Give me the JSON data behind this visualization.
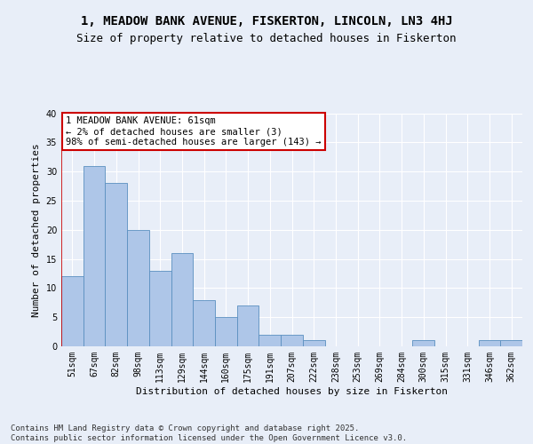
{
  "title1": "1, MEADOW BANK AVENUE, FISKERTON, LINCOLN, LN3 4HJ",
  "title2": "Size of property relative to detached houses in Fiskerton",
  "xlabel": "Distribution of detached houses by size in Fiskerton",
  "ylabel": "Number of detached properties",
  "categories": [
    "51sqm",
    "67sqm",
    "82sqm",
    "98sqm",
    "113sqm",
    "129sqm",
    "144sqm",
    "160sqm",
    "175sqm",
    "191sqm",
    "207sqm",
    "222sqm",
    "238sqm",
    "253sqm",
    "269sqm",
    "284sqm",
    "300sqm",
    "315sqm",
    "331sqm",
    "346sqm",
    "362sqm"
  ],
  "values": [
    12,
    31,
    28,
    20,
    13,
    16,
    8,
    5,
    7,
    2,
    2,
    1,
    0,
    0,
    0,
    0,
    1,
    0,
    0,
    1,
    1
  ],
  "bar_color": "#aec6e8",
  "bar_edge_color": "#5a8fc0",
  "highlight_line_color": "#cc0000",
  "annotation_text": "1 MEADOW BANK AVENUE: 61sqm\n← 2% of detached houses are smaller (3)\n98% of semi-detached houses are larger (143) →",
  "annotation_box_color": "#ffffff",
  "annotation_box_edge_color": "#cc0000",
  "ylim": [
    0,
    40
  ],
  "yticks": [
    0,
    5,
    10,
    15,
    20,
    25,
    30,
    35,
    40
  ],
  "footer_text": "Contains HM Land Registry data © Crown copyright and database right 2025.\nContains public sector information licensed under the Open Government Licence v3.0.",
  "bg_color": "#e8eef8",
  "title1_fontsize": 10,
  "title2_fontsize": 9,
  "ylabel_fontsize": 8,
  "xlabel_fontsize": 8,
  "tick_fontsize": 7,
  "annotation_fontsize": 7.5,
  "footer_fontsize": 6.5
}
